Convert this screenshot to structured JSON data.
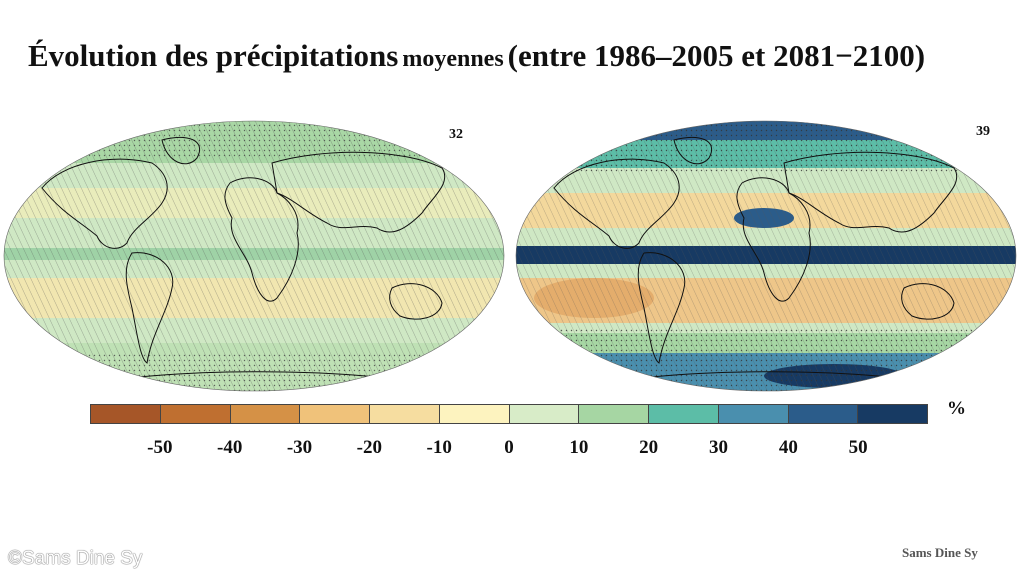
{
  "title": {
    "part1": "Évolution des précipitations",
    "part2": "moyennes",
    "part3": "(entre 1986–2005 et 2081−2100)"
  },
  "maps": [
    {
      "label": "32",
      "name": "left-map"
    },
    {
      "label": "39",
      "name": "right-map"
    }
  ],
  "colorbar": {
    "unit": "%",
    "colors": [
      "#a65628",
      "#bf6f30",
      "#d59146",
      "#f0c27a",
      "#f6dda0",
      "#fdf3bf",
      "#d8ecc8",
      "#a6d6a3",
      "#5cbda7",
      "#4a8fae",
      "#2b5c8a",
      "#173a63"
    ],
    "tick_labels": [
      "-50",
      "-40",
      "-30",
      "-20",
      "-10",
      "0",
      "10",
      "20",
      "30",
      "40",
      "50"
    ]
  },
  "credits": {
    "left": "©Sams Dine Sy",
    "right": "Sams Dine Sy"
  }
}
